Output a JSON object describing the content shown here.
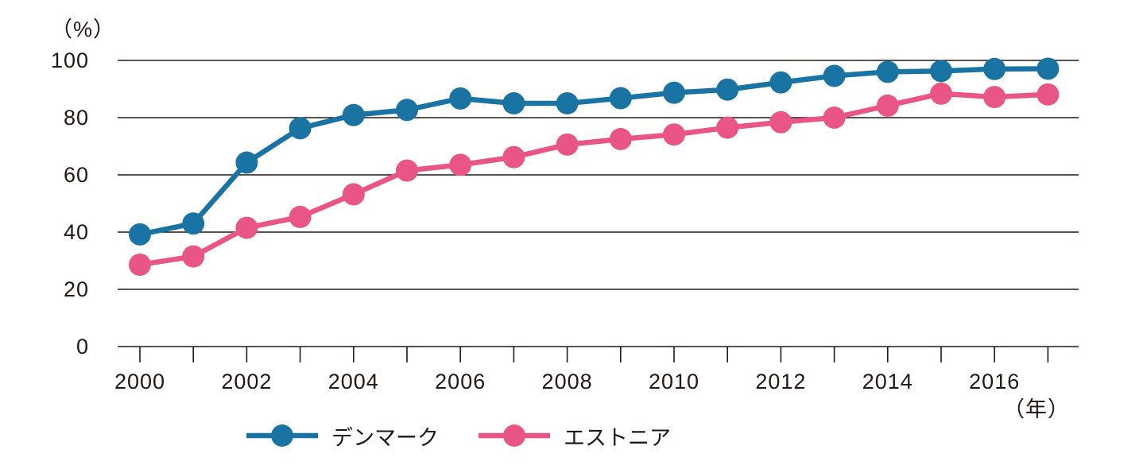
{
  "chart_data": {
    "type": "line",
    "x": [
      2000,
      2001,
      2002,
      2003,
      2004,
      2005,
      2006,
      2007,
      2008,
      2009,
      2010,
      2011,
      2012,
      2013,
      2014,
      2015,
      2016,
      2017
    ],
    "x_tick_label_step": 2,
    "xlabel": "（年）",
    "ylabel": "（%）",
    "ylim": [
      0,
      100
    ],
    "yticks": [
      0,
      20,
      40,
      60,
      80,
      100
    ],
    "grid": "horizontal",
    "legend_position": "bottom",
    "marker": "circle",
    "series": [
      {
        "name": "デンマーク",
        "color": "#1a74a3",
        "values": [
          39.2,
          43.0,
          64.3,
          76.3,
          80.9,
          82.7,
          86.7,
          85.0,
          85.0,
          86.8,
          88.7,
          89.8,
          92.3,
          94.6,
          96.0,
          96.3,
          97.0,
          97.1
        ]
      },
      {
        "name": "エストニア",
        "color": "#e95585",
        "values": [
          28.6,
          31.5,
          41.5,
          45.3,
          53.2,
          61.5,
          63.5,
          66.2,
          70.6,
          72.5,
          74.1,
          76.5,
          78.4,
          80.0,
          84.2,
          88.4,
          87.2,
          88.1
        ]
      }
    ]
  },
  "colors": {
    "grid": "#231815",
    "text": "#231815",
    "background": "#ffffff"
  }
}
